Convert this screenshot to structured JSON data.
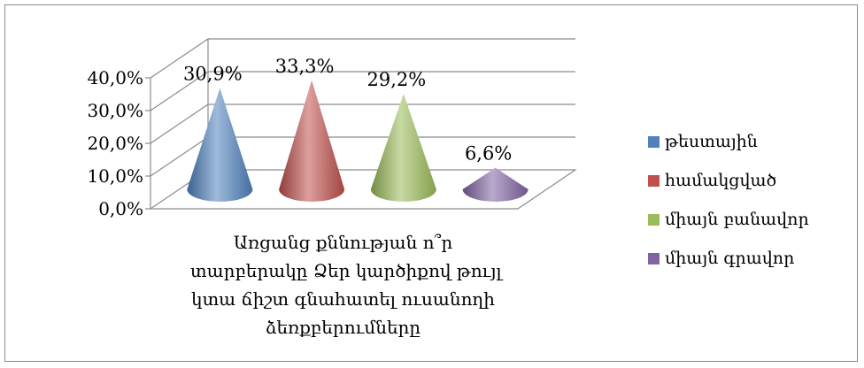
{
  "chart_data": {
    "type": "bar",
    "style": "3d-cone",
    "category": "Առցանց քննության ո՞ր տարբերակը Ձեր կարծիքով թույլ կտա ճիշտ գնահատել ուսանողի ձեռքբերումները",
    "category_lines": [
      "Առցանց քննության ո՞ր",
      "տարբերակը Ձեր կարծիքով թույլ",
      "կտա ճիշտ գնահատել ուսանողի",
      "ձեռքբերումները"
    ],
    "series": [
      {
        "name": "թեստային",
        "value": 30.9,
        "label": "30,9%",
        "color": "#4f81bd"
      },
      {
        "name": "համակցված",
        "value": 33.3,
        "label": "33,3%",
        "color": "#c0504d"
      },
      {
        "name": "միայն բանավոր",
        "value": 29.2,
        "label": "29,2%",
        "color": "#9bbb59"
      },
      {
        "name": "միայն գրավոր",
        "value": 6.6,
        "label": "6,6%",
        "color": "#8064a2"
      }
    ],
    "y_ticks": [
      "0,0%",
      "10,0%",
      "20,0%",
      "30,0%",
      "40,0%"
    ],
    "ylim": [
      0,
      40
    ],
    "legend": "right",
    "grid": true
  }
}
